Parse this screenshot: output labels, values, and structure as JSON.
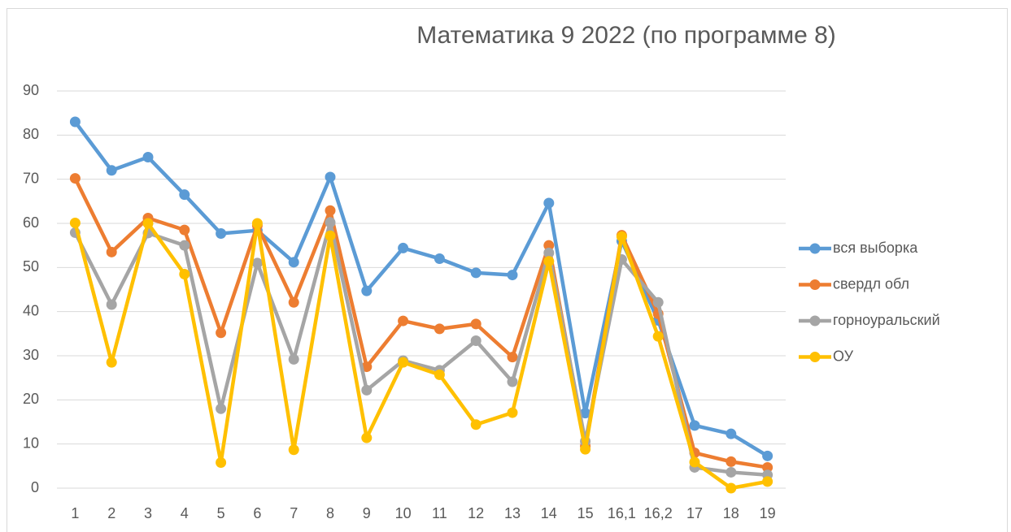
{
  "chart_data": {
    "type": "line",
    "title": "Математика 9 2022 (по программе 8)",
    "categories": [
      "1",
      "2",
      "3",
      "4",
      "5",
      "6",
      "7",
      "8",
      "9",
      "10",
      "11",
      "12",
      "13",
      "14",
      "15",
      "16,1",
      "16,2",
      "17",
      "18",
      "19"
    ],
    "series": [
      {
        "name": "вся выборка",
        "color": "#5b9bd5",
        "values": [
          83,
          72,
          75,
          66.5,
          57.7,
          58.4,
          51.2,
          70.5,
          44.7,
          54.4,
          52,
          48.8,
          48.3,
          64.6,
          17,
          56,
          38,
          14.2,
          12.3,
          7.3
        ]
      },
      {
        "name": "свердл обл",
        "color": "#ed7d31",
        "values": [
          70.2,
          53.5,
          61.2,
          58.5,
          35.2,
          59.5,
          42.1,
          62.9,
          27.5,
          37.9,
          36.1,
          37.2,
          29.7,
          55,
          9.5,
          57.3,
          39.5,
          8,
          6,
          4.7
        ]
      },
      {
        "name": "горноуральский",
        "color": "#a5a5a5",
        "values": [
          57.9,
          41.6,
          57.8,
          55,
          18,
          51,
          29.2,
          60.2,
          22.2,
          28.9,
          26.7,
          33.4,
          24.1,
          53.3,
          10.6,
          51.8,
          42.1,
          4.7,
          3.6,
          3
        ]
      },
      {
        "name": "ОУ",
        "color": "#ffc000",
        "values": [
          60.1,
          28.5,
          60,
          48.5,
          5.8,
          60,
          8.7,
          57.2,
          11.4,
          28.5,
          25.7,
          14.4,
          17.1,
          51.4,
          8.8,
          57,
          34.4,
          5.9,
          0,
          1.5
        ]
      }
    ],
    "ylim": [
      0,
      90
    ],
    "yticks": [
      0,
      10,
      20,
      30,
      40,
      50,
      60,
      70,
      80,
      90
    ],
    "grid": true,
    "legend": "right"
  }
}
